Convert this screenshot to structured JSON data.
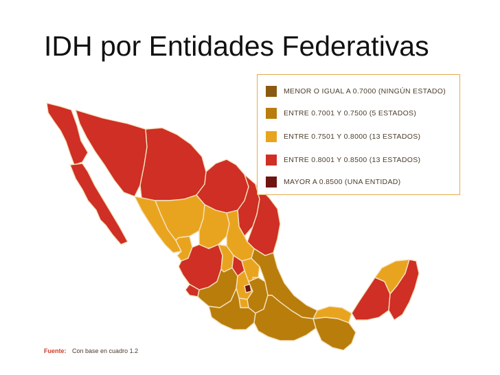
{
  "title": "IDH por Entidades Federativas",
  "colors": {
    "level_1": "#8a5a10",
    "level_2": "#b97d0c",
    "level_3": "#e9a41f",
    "level_4": "#cf2f24",
    "level_5": "#6e1510",
    "state_border": "#f4e3c2",
    "legend_border": "#e8a94a"
  },
  "legend": {
    "items": [
      {
        "label": "MENOR O IGUAL A 0.7000 (NINGÚN ESTADO)",
        "color": "#8a5a10"
      },
      {
        "label": "ENTRE 0.7001 Y 0.7500 (5 ESTADOS)",
        "color": "#b97d0c"
      },
      {
        "label": "ENTRE 0.7501 Y 0.8000 (13 ESTADOS)",
        "color": "#e9a41f"
      },
      {
        "label": "ENTRE 0.8001 Y 0.8500 (13 ESTADOS)",
        "color": "#cf2f24"
      },
      {
        "label": "MAYOR A 0.8500 (UNA ENTIDAD)",
        "color": "#6e1510"
      }
    ]
  },
  "source": {
    "label": "Fuente:",
    "text": "Con base en cuadro 1.2"
  }
}
